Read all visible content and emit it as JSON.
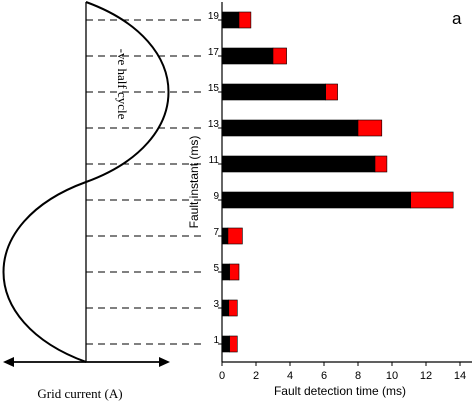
{
  "chart_data": {
    "type": "bar",
    "orientation": "horizontal",
    "stacked": true,
    "panel_label": "a",
    "xlabel": "Fault detection time (ms)",
    "ylabel": "Fault instant (ms)",
    "xlim": [
      0,
      14
    ],
    "xticks": [
      0,
      2,
      4,
      6,
      8,
      10,
      12,
      14
    ],
    "categories": [
      1,
      3,
      5,
      7,
      9,
      11,
      13,
      15,
      17,
      19
    ],
    "series": [
      {
        "color": "#000000",
        "values": [
          0.45,
          0.4,
          0.45,
          0.35,
          11.1,
          9.0,
          8.0,
          6.1,
          3.0,
          1.0
        ]
      },
      {
        "color": "#ff0000",
        "values": [
          0.45,
          0.5,
          0.55,
          0.85,
          2.5,
          0.7,
          1.4,
          0.7,
          0.8,
          0.7
        ]
      }
    ],
    "grid": false
  },
  "waveform": {
    "axis_label": "Grid current (A)",
    "annotation": "-ve half cycle"
  }
}
